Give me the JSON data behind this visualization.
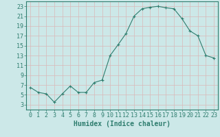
{
  "x": [
    0,
    1,
    2,
    3,
    4,
    5,
    6,
    7,
    8,
    9,
    10,
    11,
    12,
    13,
    14,
    15,
    16,
    17,
    18,
    19,
    20,
    21,
    22,
    23
  ],
  "y": [
    6.5,
    5.5,
    5.2,
    3.5,
    5.2,
    6.8,
    5.5,
    5.5,
    7.5,
    8.0,
    13.0,
    15.2,
    17.5,
    21.0,
    22.5,
    22.8,
    23.0,
    22.7,
    22.5,
    20.5,
    18.0,
    17.0,
    13.0,
    12.5
  ],
  "line_color": "#2e7d6e",
  "marker": "+",
  "bg_color": "#cce8e8",
  "grid_color": "#d9b8b8",
  "xlabel": "Humidex (Indice chaleur)",
  "xlim": [
    -0.5,
    23.5
  ],
  "ylim": [
    2,
    24
  ],
  "yticks": [
    3,
    5,
    7,
    9,
    11,
    13,
    15,
    17,
    19,
    21,
    23
  ],
  "xticks": [
    0,
    1,
    2,
    3,
    4,
    5,
    6,
    7,
    8,
    9,
    10,
    11,
    12,
    13,
    14,
    15,
    16,
    17,
    18,
    19,
    20,
    21,
    22,
    23
  ],
  "xtick_labels": [
    "0",
    "1",
    "2",
    "3",
    "4",
    "5",
    "6",
    "7",
    "8",
    "9",
    "10",
    "11",
    "12",
    "13",
    "14",
    "15",
    "16",
    "17",
    "18",
    "19",
    "20",
    "21",
    "22",
    "23"
  ],
  "tick_color": "#2e7d6e",
  "axis_color": "#2e7d6e",
  "font_size": 6,
  "xlabel_fontsize": 7
}
